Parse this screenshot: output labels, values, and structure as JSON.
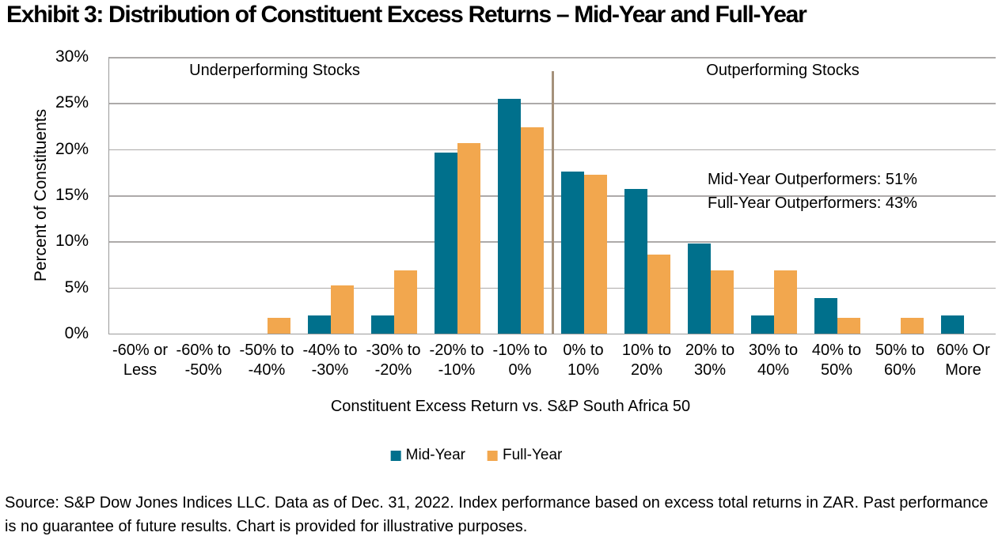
{
  "page": {
    "title": "Exhibit 3: Distribution of Constituent Excess Returns – Mid-Year and Full-Year",
    "source_text": "Source: S&P Dow Jones Indices LLC. Data as of Dec. 31, 2022. Index performance based on excess total returns in ZAR. Past performance is no guarantee of future results. Chart is provided for illustrative purposes."
  },
  "chart_data": {
    "type": "bar",
    "title": "Exhibit 3: Distribution of Constituent Excess Returns – Mid-Year and Full-Year",
    "xlabel": "Constituent Excess Return vs. S&P South Africa 50",
    "ylabel": "Percent of Constituents",
    "ylim": [
      0,
      30
    ],
    "ytick_step": 5,
    "ytick_suffix": "%",
    "grid": true,
    "legend_position": "bottom-center",
    "categories": [
      "-60% or\nLess",
      "-60% to\n-50%",
      "-50% to\n-40%",
      "-40% to\n-30%",
      "-30% to\n-20%",
      "-20% to\n-10%",
      "-10% to\n0%",
      "0% to\n10%",
      "10% to\n20%",
      "20% to\n30%",
      "30% to\n40%",
      "40% to\n50%",
      "50% to\n60%",
      "60% Or\nMore"
    ],
    "series": [
      {
        "name": "Mid-Year",
        "color": "#00708C",
        "values": [
          0,
          0,
          0,
          2.0,
          2.0,
          19.6,
          25.5,
          17.6,
          15.7,
          9.8,
          2.0,
          3.9,
          0,
          2.0
        ]
      },
      {
        "name": "Full-Year",
        "color": "#F2A74E",
        "values": [
          0,
          0,
          1.7,
          5.2,
          6.9,
          20.7,
          22.4,
          17.2,
          8.6,
          6.9,
          6.9,
          1.7,
          1.7,
          0
        ]
      }
    ],
    "divider_after_category": 7,
    "annotations": {
      "underperforming_label": "Underperforming Stocks",
      "outperforming_label": "Outperforming Stocks",
      "mid_year_note": "Mid-Year Outperformers: 51%",
      "full_year_note": "Full-Year Outperformers: 43%"
    }
  },
  "colors": {
    "mid_year": "#00708C",
    "full_year": "#F2A74E",
    "gridline": "#ADAAA9",
    "axis_line": "#9B9B9B",
    "divider": "#A5917B",
    "text": "#000000",
    "background": "#FFFFFF"
  }
}
